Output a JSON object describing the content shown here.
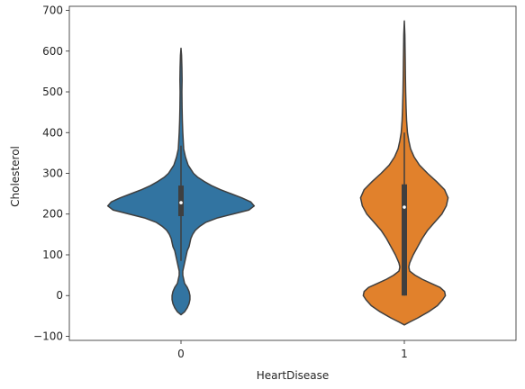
{
  "chart_data": {
    "type": "violin",
    "title": "",
    "xlabel": "HeartDisease",
    "ylabel": "Cholesterol",
    "ylim": [
      -110,
      710
    ],
    "yticks": [
      -100,
      0,
      100,
      200,
      300,
      400,
      500,
      600,
      700
    ],
    "yticklabels": [
      "−100",
      "0",
      "100",
      "200",
      "300",
      "400",
      "500",
      "600",
      "700"
    ],
    "grid": false,
    "legend": "none",
    "categories": [
      "0",
      "1"
    ],
    "violins": [
      {
        "category": "0",
        "color": "#3274a1",
        "box": {
          "q1": 195,
          "median": 228,
          "q3": 270,
          "whisker_low": 85,
          "whisker_high": 368
        },
        "profile": [
          [
            -47,
            0.0
          ],
          [
            -40,
            0.04
          ],
          [
            -30,
            0.07
          ],
          [
            -20,
            0.09
          ],
          [
            -10,
            0.1
          ],
          [
            0,
            0.1
          ],
          [
            10,
            0.09
          ],
          [
            20,
            0.07
          ],
          [
            30,
            0.04
          ],
          [
            40,
            0.03
          ],
          [
            50,
            0.02
          ],
          [
            60,
            0.02
          ],
          [
            70,
            0.03
          ],
          [
            80,
            0.04
          ],
          [
            90,
            0.05
          ],
          [
            100,
            0.06
          ],
          [
            110,
            0.07
          ],
          [
            120,
            0.09
          ],
          [
            130,
            0.1
          ],
          [
            140,
            0.11
          ],
          [
            150,
            0.13
          ],
          [
            160,
            0.16
          ],
          [
            170,
            0.21
          ],
          [
            180,
            0.28
          ],
          [
            190,
            0.4
          ],
          [
            200,
            0.58
          ],
          [
            210,
            0.76
          ],
          [
            220,
            0.82
          ],
          [
            230,
            0.78
          ],
          [
            240,
            0.68
          ],
          [
            250,
            0.56
          ],
          [
            260,
            0.44
          ],
          [
            270,
            0.34
          ],
          [
            280,
            0.26
          ],
          [
            290,
            0.19
          ],
          [
            300,
            0.14
          ],
          [
            320,
            0.08
          ],
          [
            340,
            0.05
          ],
          [
            360,
            0.03
          ],
          [
            380,
            0.025
          ],
          [
            400,
            0.02
          ],
          [
            430,
            0.015
          ],
          [
            460,
            0.012
          ],
          [
            500,
            0.01
          ],
          [
            530,
            0.012
          ],
          [
            560,
            0.01
          ],
          [
            590,
            0.006
          ],
          [
            607,
            0.0
          ]
        ]
      },
      {
        "category": "1",
        "color": "#e1812c",
        "box": {
          "q1": 0,
          "median": 217,
          "q3": 273,
          "whisker_low": 0,
          "whisker_high": 400
        },
        "profile": [
          [
            -72,
            0.0
          ],
          [
            -65,
            0.06
          ],
          [
            -55,
            0.15
          ],
          [
            -40,
            0.27
          ],
          [
            -25,
            0.37
          ],
          [
            -10,
            0.43
          ],
          [
            0,
            0.46
          ],
          [
            10,
            0.45
          ],
          [
            20,
            0.4
          ],
          [
            30,
            0.3
          ],
          [
            40,
            0.2
          ],
          [
            50,
            0.12
          ],
          [
            60,
            0.06
          ],
          [
            70,
            0.05
          ],
          [
            80,
            0.06
          ],
          [
            90,
            0.08
          ],
          [
            100,
            0.1
          ],
          [
            120,
            0.15
          ],
          [
            140,
            0.2
          ],
          [
            160,
            0.26
          ],
          [
            180,
            0.34
          ],
          [
            200,
            0.42
          ],
          [
            220,
            0.47
          ],
          [
            240,
            0.49
          ],
          [
            260,
            0.45
          ],
          [
            280,
            0.36
          ],
          [
            300,
            0.26
          ],
          [
            320,
            0.17
          ],
          [
            340,
            0.11
          ],
          [
            360,
            0.07
          ],
          [
            380,
            0.05
          ],
          [
            400,
            0.035
          ],
          [
            430,
            0.025
          ],
          [
            460,
            0.02
          ],
          [
            500,
            0.015
          ],
          [
            540,
            0.012
          ],
          [
            580,
            0.01
          ],
          [
            610,
            0.008
          ],
          [
            640,
            0.006
          ],
          [
            674,
            0.0
          ]
        ]
      }
    ]
  }
}
